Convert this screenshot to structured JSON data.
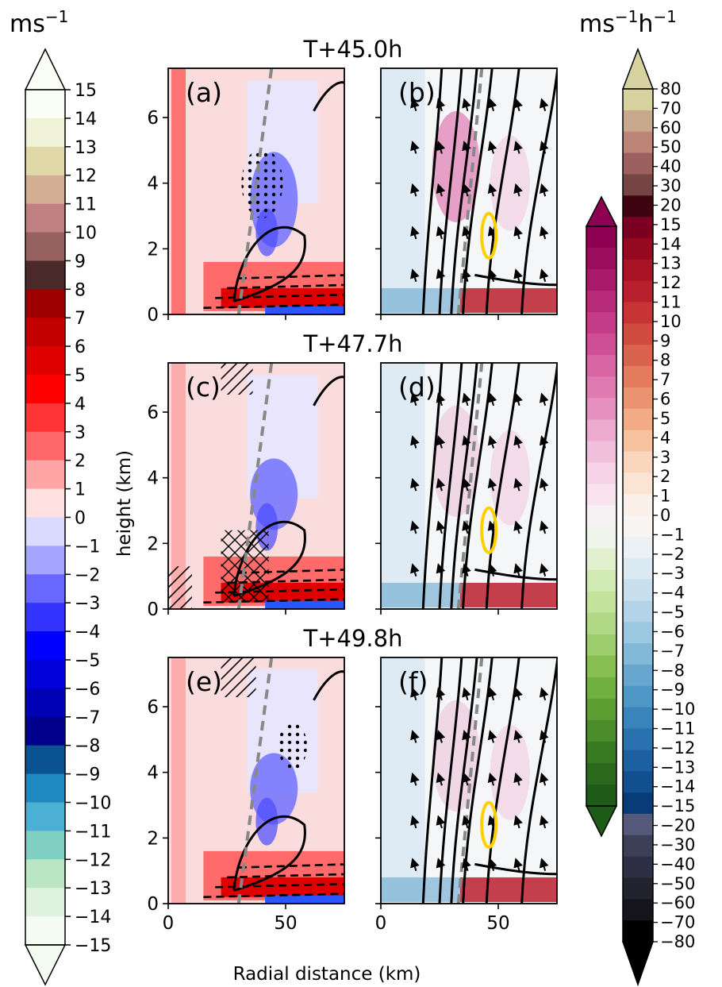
{
  "chart_data": {
    "type": "heatmap",
    "rows": [
      {
        "time_label": "T+45.0h",
        "panels": [
          {
            "label": "(a)"
          },
          {
            "label": "(b)"
          }
        ]
      },
      {
        "time_label": "T+47.7h",
        "panels": [
          {
            "label": "(c)"
          },
          {
            "label": "(d)"
          }
        ]
      },
      {
        "time_label": "T+49.8h",
        "panels": [
          {
            "label": "(e)"
          },
          {
            "label": "(f)"
          }
        ]
      }
    ],
    "xlabel": "Radial distance (km)",
    "ylabel": "height (km)",
    "xlim": [
      0,
      75
    ],
    "ylim": [
      0,
      7.5
    ],
    "x_ticks": [
      0,
      50
    ],
    "y_ticks": [
      0,
      2,
      4,
      6
    ],
    "left_colorbar": {
      "unit_base": "ms",
      "unit_exp": "−1",
      "extend": "both",
      "labels": [
        "15",
        "14",
        "13",
        "12",
        "11",
        "10",
        "9",
        "8",
        "7",
        "6",
        "5",
        "4",
        "3",
        "2",
        "1",
        "0",
        "−1",
        "−2",
        "−3",
        "−4",
        "−5",
        "−6",
        "−7",
        "−8",
        "−9",
        "−10",
        "−11",
        "−12",
        "−13",
        "−14",
        "−15"
      ],
      "colors": [
        "#fbfef5",
        "#f1f3d8",
        "#e1d8a8",
        "#d3ae93",
        "#c07f80",
        "#976160",
        "#4a2a29",
        "#9e0000",
        "#c20000",
        "#e00000",
        "#ff0000",
        "#ff3434",
        "#ff6868",
        "#ffa5a5",
        "#ffe1e1",
        "#dadaff",
        "#a5a5ff",
        "#6868ff",
        "#3434ff",
        "#0000ff",
        "#0000d9",
        "#0000b4",
        "#00008c",
        "#0a5392",
        "#1f88bf",
        "#4cb0d4",
        "#80cfc3",
        "#bbe6c4",
        "#dff2dd",
        "#f5fcf2"
      ]
    },
    "right_colorbar": {
      "unit_a": "ms",
      "unit_a_exp": "−1",
      "unit_b": "h",
      "unit_b_exp": "−1",
      "extend": "both",
      "labels": [
        "80",
        "70",
        "60",
        "50",
        "40",
        "30",
        "20",
        "15",
        "14",
        "13",
        "12",
        "11",
        "10",
        "9",
        "8",
        "7",
        "6",
        "5",
        "4",
        "3",
        "2",
        "1",
        "0",
        "−1",
        "−2",
        "−3",
        "−4",
        "−5",
        "−6",
        "−7",
        "−8",
        "−9",
        "−10",
        "−11",
        "−12",
        "−13",
        "−14",
        "−15",
        "−20",
        "−30",
        "−40",
        "−50",
        "−60",
        "−70",
        "−80"
      ],
      "colors_red_blue": [
        "#d8d2a0",
        "#c9a98e",
        "#bd8578",
        "#9c605f",
        "#754544",
        "#3e0410",
        "#7c0022",
        "#96091e",
        "#a81426",
        "#b91f2d",
        "#c63436",
        "#d04b40",
        "#d9634d",
        "#e47b5c",
        "#eb9370",
        "#f2ab85",
        "#f7c39f",
        "#fad6bc",
        "#fbe4d4",
        "#fbf0e9",
        "#f8f4f1",
        "#ebf1f5",
        "#dbe9f3",
        "#c8dfee",
        "#b3d4e8",
        "#9bc8e0",
        "#82b8d8",
        "#67a7cf",
        "#4e96c6",
        "#3a84bc",
        "#2a71b0",
        "#1d60a2",
        "#124f8f",
        "#083b78",
        "#555a7a",
        "#3b3f58",
        "#2e2f44",
        "#22232e",
        "#15151b",
        "#000000"
      ],
      "colors_pink_green": [
        "#8e0152",
        "#9a0c5c",
        "#a8196a",
        "#b72b79",
        "#c43c88",
        "#cf4f96",
        "#d865a4",
        "#e07bb2",
        "#e690bf",
        "#ecaacf",
        "#f1c0dc",
        "#f6d3e7",
        "#f9e3ef",
        "#f7f2f4",
        "#f0f5eb",
        "#e1f0cf",
        "#d2ebb4",
        "#c3e39d",
        "#b1d985",
        "#9dcd6c",
        "#87bf53",
        "#71b13f",
        "#5d9f33",
        "#4a8d2a",
        "#397b22",
        "#2b6a1d",
        "#1f5b18"
      ]
    }
  }
}
